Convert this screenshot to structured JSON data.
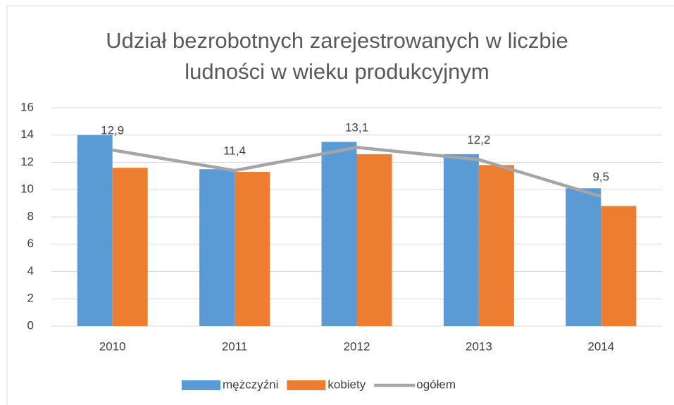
{
  "chart_data": {
    "type": "bar",
    "title": "Udział bezrobotnych zarejestrowanych w liczbie ludności w wieku produkcyjnym",
    "categories": [
      "2010",
      "2011",
      "2012",
      "2013",
      "2014"
    ],
    "series": [
      {
        "name": "mężczyźni",
        "color": "#5b9bd5",
        "values": [
          14.0,
          11.5,
          13.5,
          12.6,
          10.1
        ]
      },
      {
        "name": "kobiety",
        "color": "#ed7d31",
        "values": [
          11.6,
          11.3,
          12.6,
          11.8,
          8.8
        ]
      },
      {
        "name": "ogółem",
        "color": "#a5a5a5",
        "type": "line",
        "values": [
          12.9,
          11.4,
          13.1,
          12.2,
          9.5
        ],
        "value_labels": [
          "12,9",
          "11,4",
          "13,1",
          "12,2",
          "9,5"
        ]
      }
    ],
    "ylim": [
      0,
      16
    ],
    "yticks": [
      0,
      2,
      4,
      6,
      8,
      10,
      12,
      14,
      16
    ],
    "grid": true,
    "legend": "bottom"
  }
}
